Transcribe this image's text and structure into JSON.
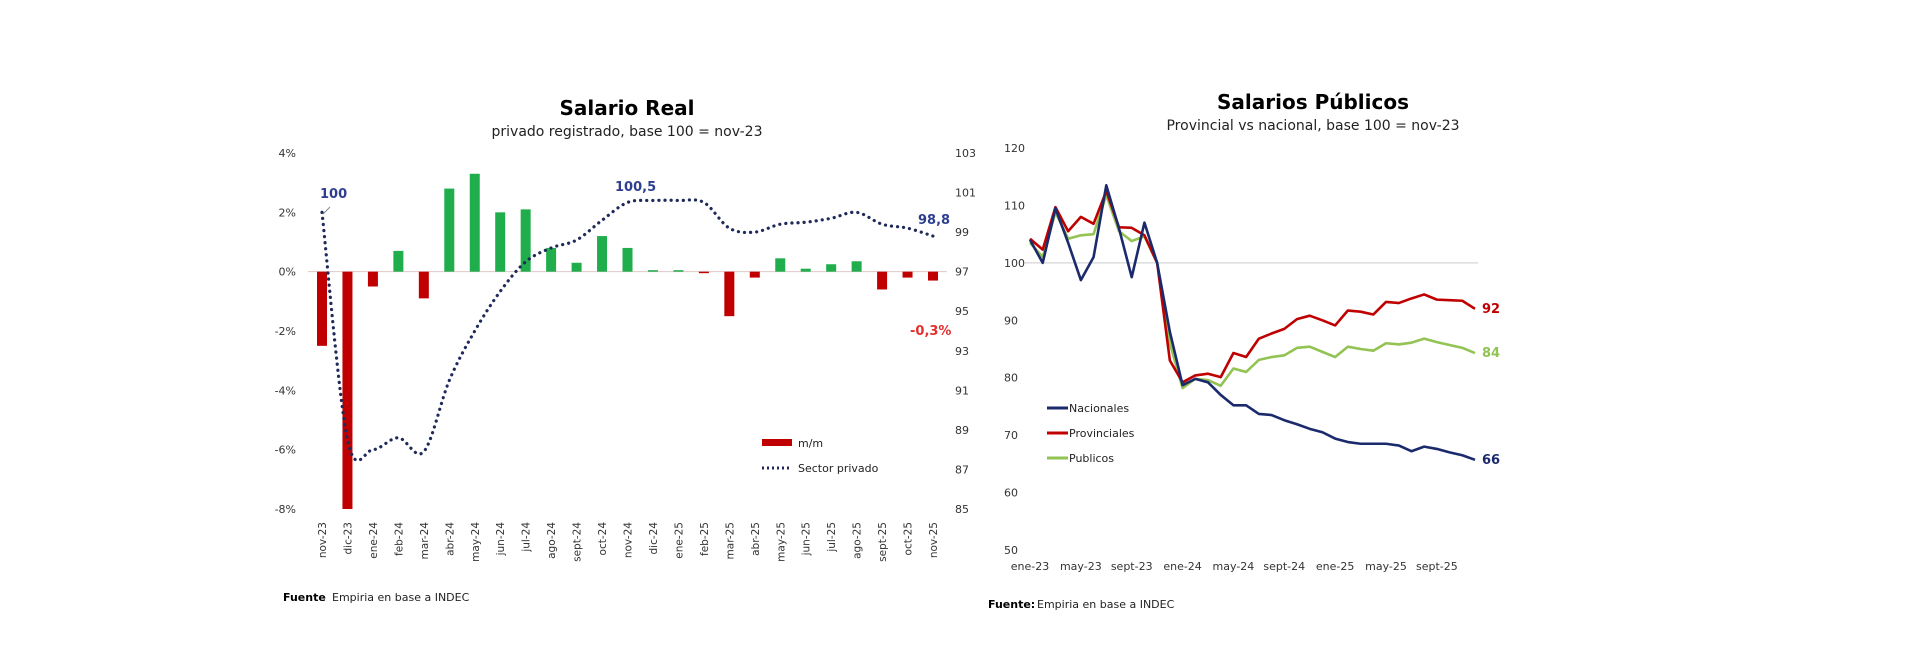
{
  "chart_data": [
    {
      "type": "bar+line",
      "title": "Salario Real",
      "subtitle": "privado registrado, base 100 = nov-23",
      "categories": [
        "nov-23",
        "dic-23",
        "ene-24",
        "feb-24",
        "mar-24",
        "abr-24",
        "may-24",
        "jun-24",
        "jul-24",
        "ago-24",
        "sept-24",
        "oct-24",
        "nov-24",
        "dic-24",
        "ene-25",
        "feb-25",
        "mar-25",
        "abr-25",
        "may-25",
        "jun-25",
        "jul-25",
        "ago-25",
        "sept-25",
        "oct-25",
        "nov-25"
      ],
      "left_axis": {
        "ylim": [
          -8,
          4
        ],
        "ticks": [
          "4%",
          "2%",
          "0%",
          "-2%",
          "-4%",
          "-6%",
          "-8%"
        ]
      },
      "right_axis": {
        "ylim": [
          85,
          103
        ],
        "ticks": [
          "103",
          "101",
          "99",
          "97",
          "95",
          "93",
          "91",
          "89",
          "87",
          "85"
        ]
      },
      "series": [
        {
          "name": "m/m",
          "type": "bar",
          "axis": "left",
          "unit": "%",
          "positive_color": "#1fae4b",
          "negative_color": "#c00000",
          "values": [
            -2.5,
            -8.0,
            -0.5,
            0.7,
            -0.9,
            2.8,
            3.3,
            2.0,
            2.1,
            0.8,
            0.3,
            1.2,
            0.8,
            0.05,
            0.05,
            -0.05,
            -1.5,
            -0.2,
            0.45,
            0.1,
            0.25,
            0.35,
            -0.6,
            -0.2,
            -0.3
          ]
        },
        {
          "name": "Sector privado",
          "type": "line",
          "style": "dotted",
          "axis": "right",
          "color": "#1f2a5a",
          "values": [
            100,
            88.5,
            88.0,
            88.6,
            87.9,
            91.5,
            94.0,
            96.0,
            97.5,
            98.2,
            98.6,
            99.6,
            100.5,
            100.6,
            100.6,
            100.5,
            99.2,
            99.0,
            99.4,
            99.5,
            99.7,
            100.0,
            99.4,
            99.2,
            98.8
          ]
        }
      ],
      "annotations": [
        {
          "text": "100",
          "color": "#2e3f8f"
        },
        {
          "text": "100,5",
          "color": "#2e3f8f"
        },
        {
          "text": "98,8",
          "color": "#2e3f8f"
        },
        {
          "text": "-0,3%",
          "color": "#e03030"
        }
      ],
      "legend": "bottom-right",
      "source_label": "Fuente",
      "source_text": "Empiria en base a INDEC"
    },
    {
      "type": "line",
      "title": "Salarios Públicos",
      "subtitle": "Provincial vs nacional, base 100 = nov-23",
      "x_tick_labels": [
        "ene-23",
        "may-23",
        "sept-23",
        "ene-24",
        "may-24",
        "sept-24",
        "ene-25",
        "may-25",
        "sept-25"
      ],
      "ylim": [
        50,
        120
      ],
      "y_ticks": [
        "120",
        "110",
        "100",
        "90",
        "80",
        "70",
        "60",
        "50"
      ],
      "reference_line": 100,
      "series": [
        {
          "name": "Nacionales",
          "color": "#1a2a6c",
          "end_label": "66",
          "values": [
            104,
            100,
            109.5,
            103.5,
            97,
            101,
            113.5,
            106,
            97.5,
            107,
            100,
            88,
            78.7,
            79.8,
            79.2,
            77,
            75.2,
            75.2,
            73.7,
            73.5,
            72.6,
            71.9,
            71.1,
            70.5,
            69.4,
            68.8,
            68.5,
            68.5,
            68.5,
            68.2,
            67.2,
            68,
            67.6,
            67,
            66.5,
            65.7
          ]
        },
        {
          "name": "Provinciales",
          "color": "#c00000",
          "end_label": "92",
          "values": [
            104.2,
            102.3,
            109.7,
            105.5,
            108,
            106.8,
            112.5,
            106.2,
            106.1,
            104.8,
            100,
            83,
            79.2,
            80.4,
            80.7,
            80.1,
            84.3,
            83.6,
            86.8,
            87.7,
            88.5,
            90.2,
            90.8,
            90,
            89.1,
            91.7,
            91.5,
            91,
            93.2,
            93,
            93.8,
            94.5,
            93.6,
            93.5,
            93.4,
            92
          ]
        },
        {
          "name": "Publicos",
          "color": "#92c353",
          "end_label": "84",
          "values": [
            103.5,
            101,
            108.8,
            104.2,
            104.8,
            105,
            111.8,
            105.5,
            103.8,
            104.6,
            100,
            86,
            78.2,
            79.8,
            79.6,
            78.6,
            81.6,
            81,
            83.1,
            83.6,
            83.9,
            85.2,
            85.4,
            84.5,
            83.6,
            85.4,
            85,
            84.7,
            86,
            85.8,
            86.1,
            86.8,
            86.2,
            85.7,
            85.2,
            84.3
          ]
        }
      ],
      "legend": "bottom-left",
      "source_label": "Fuente:",
      "source_text": "Empiria en base a INDEC"
    }
  ]
}
